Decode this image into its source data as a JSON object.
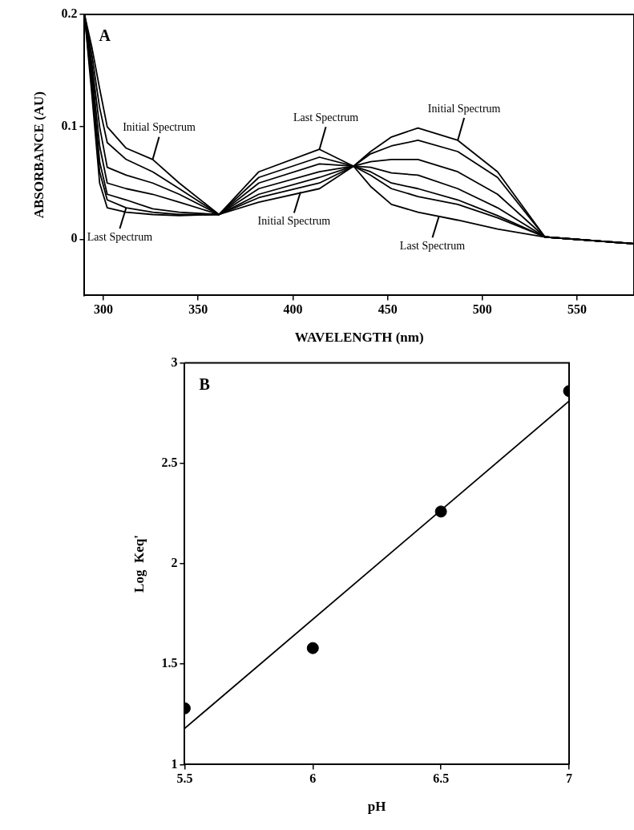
{
  "chart_data": [
    {
      "type": "line",
      "xlabel": "WAVELENGTH (nm)",
      "ylabel": "ABSORBANCE (AU)",
      "marker": "none",
      "line_style": "solid",
      "x": [
        290,
        294,
        298,
        302,
        312,
        326,
        340,
        361,
        382,
        414,
        432,
        441,
        452,
        466,
        487,
        508,
        533,
        580
      ],
      "xlim": [
        290,
        580
      ],
      "xticks": [
        300,
        350,
        400,
        450,
        500,
        550
      ],
      "ylim": [
        -0.05,
        0.2
      ],
      "yticks": [
        0,
        0.1,
        0.2
      ],
      "series": [
        {
          "color": "#000000",
          "values": [
            0.2,
            0.17,
            0.134,
            0.1,
            0.081,
            0.071,
            0.05,
            0.022,
            0.033,
            0.045,
            0.065,
            0.078,
            0.091,
            0.099,
            0.088,
            0.06,
            0.002,
            -0.004
          ]
        },
        {
          "color": "#000000",
          "values": [
            0.2,
            0.163,
            0.117,
            0.086,
            0.071,
            0.06,
            0.045,
            0.022,
            0.037,
            0.05,
            0.065,
            0.076,
            0.083,
            0.088,
            0.078,
            0.055,
            0.002,
            -0.004
          ]
        },
        {
          "color": "#000000",
          "values": [
            0.2,
            0.155,
            0.1,
            0.064,
            0.057,
            0.05,
            0.04,
            0.022,
            0.04,
            0.055,
            0.065,
            0.069,
            0.071,
            0.071,
            0.06,
            0.04,
            0.002,
            -0.004
          ]
        },
        {
          "color": "#000000",
          "values": [
            0.2,
            0.148,
            0.083,
            0.05,
            0.045,
            0.04,
            0.033,
            0.022,
            0.045,
            0.06,
            0.065,
            0.064,
            0.059,
            0.057,
            0.045,
            0.028,
            0.002,
            -0.004
          ]
        },
        {
          "color": "#000000",
          "values": [
            0.2,
            0.141,
            0.069,
            0.04,
            0.035,
            0.027,
            0.024,
            0.022,
            0.05,
            0.067,
            0.065,
            0.06,
            0.05,
            0.045,
            0.035,
            0.021,
            0.002,
            -0.004
          ]
        },
        {
          "color": "#000000",
          "values": [
            0.2,
            0.134,
            0.06,
            0.035,
            0.028,
            0.024,
            0.022,
            0.022,
            0.055,
            0.073,
            0.065,
            0.057,
            0.045,
            0.038,
            0.031,
            0.019,
            0.002,
            -0.004
          ]
        },
        {
          "color": "#000000",
          "values": [
            0.2,
            0.127,
            0.05,
            0.028,
            0.024,
            0.022,
            0.021,
            0.022,
            0.06,
            0.08,
            0.065,
            0.047,
            0.031,
            0.024,
            0.017,
            0.009,
            0.002,
            -0.004
          ]
        }
      ],
      "annotations": [
        "A",
        {
          "text": "Initial Spectrum",
          "x": 326,
          "y": 0.071
        },
        {
          "text": "Last Spectrum",
          "x": 312,
          "y": 0.028
        },
        {
          "text": "Last Spectrum",
          "x": 414,
          "y": 0.08
        },
        {
          "text": "Initial Spectrum",
          "x": 404,
          "y": 0.042
        },
        {
          "text": "Initial Spectrum",
          "x": 487,
          "y": 0.088
        },
        {
          "text": "Last Spectrum",
          "x": 477,
          "y": 0.02
        }
      ]
    },
    {
      "type": "scatter",
      "xlabel": "pH",
      "ylabel": "Log  Keq'",
      "xlim": [
        5.5,
        7
      ],
      "xticks": [
        5.5,
        6,
        6.5,
        7
      ],
      "ylim": [
        1,
        3
      ],
      "yticks": [
        1,
        1.5,
        2,
        2.5,
        3
      ],
      "x": [
        5.5,
        6,
        6.5,
        7
      ],
      "series": [
        {
          "type": "scatter",
          "color": "#000000",
          "marker": "circle",
          "values": [
            1.28,
            1.58,
            2.26,
            2.86
          ]
        },
        {
          "type": "line",
          "color": "#000000",
          "marker": "none",
          "x": [
            5.5,
            7
          ],
          "values": [
            1.18,
            2.81
          ]
        }
      ],
      "annotations": [
        "B"
      ]
    }
  ]
}
